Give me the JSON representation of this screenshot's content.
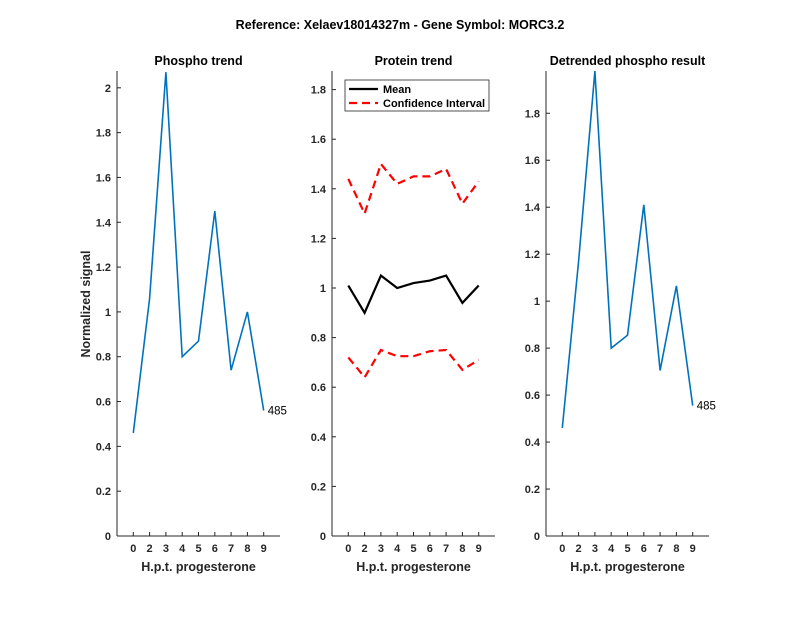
{
  "suptitle": "Reference:  Xelaev18014327m - Gene Symbol:  MORC3.2",
  "chart_data": [
    {
      "type": "line",
      "title": "Phospho trend",
      "xlabel": "H.p.t. progesterone",
      "ylabel": "Normalized signal",
      "categories": [
        "0",
        "2",
        "3",
        "4",
        "5",
        "6",
        "7",
        "8",
        "9"
      ],
      "ylim": [
        0,
        2.075
      ],
      "yticks": [
        0,
        0.2,
        0.4,
        0.6,
        0.8,
        1,
        1.2,
        1.4,
        1.6,
        1.8,
        2
      ],
      "series": [
        {
          "name": "Phospho",
          "color": "#0072BD",
          "style": "solid",
          "values": [
            0.46,
            1.06,
            2.07,
            0.8,
            0.87,
            1.45,
            0.74,
            1.0,
            0.56
          ]
        }
      ],
      "annotation": "485"
    },
    {
      "type": "line",
      "title": "Protein trend",
      "xlabel": "H.p.t. progesterone",
      "ylabel": "",
      "categories": [
        "0",
        "2",
        "3",
        "4",
        "5",
        "6",
        "7",
        "8",
        "9"
      ],
      "ylim": [
        0,
        1.875
      ],
      "yticks": [
        0,
        0.2,
        0.4,
        0.6,
        0.8,
        1,
        1.2,
        1.4,
        1.6,
        1.8
      ],
      "legend": {
        "placement": "top-left",
        "entries": [
          "Mean",
          "Confidence Interval"
        ]
      },
      "series": [
        {
          "name": "Mean",
          "color": "#000000",
          "style": "solid",
          "values": [
            1.01,
            0.9,
            1.05,
            1.0,
            1.02,
            1.03,
            1.05,
            0.94,
            1.01
          ]
        },
        {
          "name": "Confidence Interval",
          "color": "#FF0000",
          "style": "dashed",
          "values": [
            1.44,
            1.3,
            1.5,
            1.42,
            1.45,
            1.45,
            1.48,
            1.34,
            1.43
          ]
        },
        {
          "name": "Confidence Interval",
          "color": "#FF0000",
          "style": "dashed",
          "values": [
            0.72,
            0.64,
            0.75,
            0.725,
            0.725,
            0.745,
            0.75,
            0.67,
            0.71
          ]
        }
      ]
    },
    {
      "type": "line",
      "title": "Detrended phospho result",
      "xlabel": "H.p.t. progesterone",
      "ylabel": "",
      "categories": [
        "0",
        "2",
        "3",
        "4",
        "5",
        "6",
        "7",
        "8",
        "9"
      ],
      "ylim": [
        0,
        1.98
      ],
      "yticks": [
        0,
        0.2,
        0.4,
        0.6,
        0.8,
        1,
        1.2,
        1.4,
        1.6,
        1.8
      ],
      "series": [
        {
          "name": "Detrended",
          "color": "#0072BD",
          "style": "solid",
          "values": [
            0.46,
            1.17,
            1.98,
            0.8,
            0.855,
            1.41,
            0.705,
            1.065,
            0.555
          ]
        }
      ],
      "annotation": "485"
    }
  ]
}
